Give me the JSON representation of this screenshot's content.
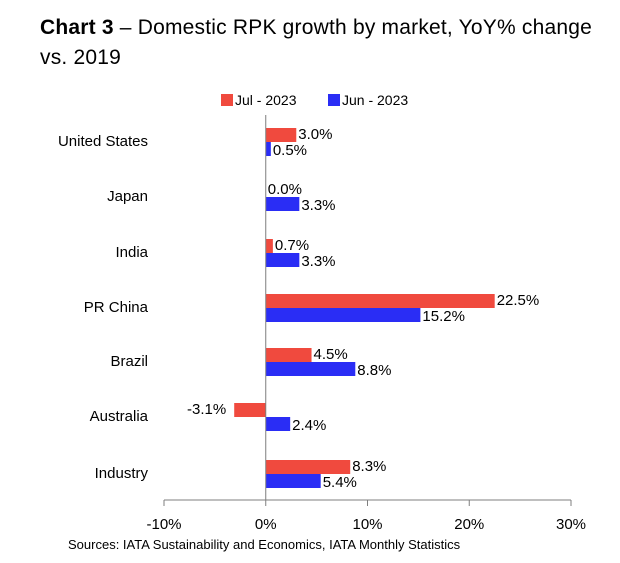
{
  "title": {
    "bold": "Chart 3",
    "rest": " – Domestic RPK growth by market, YoY% change vs. 2019"
  },
  "source": "Sources: IATA Sustainability and Economics, IATA Monthly Statistics",
  "chart_data": {
    "type": "bar",
    "orientation": "horizontal",
    "categories": [
      "United States",
      "Japan",
      "India",
      "PR China",
      "Brazil",
      "Australia",
      "Industry"
    ],
    "series": [
      {
        "name": "Jul - 2023",
        "color": "#f04a3e",
        "values": [
          3.0,
          0.0,
          0.7,
          22.5,
          4.5,
          -3.1,
          8.3
        ],
        "labels": [
          "3.0%",
          "0.0%",
          "0.7%",
          "22.5%",
          "4.5%",
          "-3.1%",
          "8.3%"
        ]
      },
      {
        "name": "Jun - 2023",
        "color": "#2a2df5",
        "values": [
          0.5,
          3.3,
          3.3,
          15.2,
          8.8,
          2.4,
          5.4
        ],
        "labels": [
          "0.5%",
          "3.3%",
          "3.3%",
          "15.2%",
          "8.8%",
          "2.4%",
          "5.4%"
        ]
      }
    ],
    "xlim": [
      -10,
      30
    ],
    "xticks": [
      -10,
      0,
      10,
      20,
      30
    ],
    "xtick_labels": [
      "-10%",
      "0%",
      "10%",
      "20%",
      "30%"
    ],
    "grid": false,
    "legend_position": "top"
  }
}
